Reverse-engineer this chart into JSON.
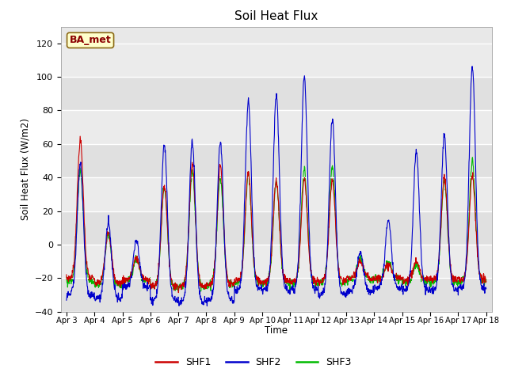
{
  "title": "Soil Heat Flux",
  "ylabel": "Soil Heat Flux (W/m2)",
  "xlabel": "Time",
  "ylim": [
    -40,
    130
  ],
  "yticks": [
    -40,
    -20,
    0,
    20,
    40,
    60,
    80,
    100,
    120
  ],
  "bg_color": "#e8e8e8",
  "fig_color": "#ffffff",
  "site_label": "BA_met",
  "legend_labels": [
    "SHF1",
    "SHF2",
    "SHF3"
  ],
  "legend_colors": [
    "#cc0000",
    "#0000cc",
    "#00bb00"
  ],
  "xtick_labels": [
    "Apr 3",
    "Apr 4",
    "Apr 5",
    "Apr 6",
    "Apr 7",
    "Apr 8",
    "Apr 9",
    "Apr 10",
    "Apr 11",
    "Apr 12",
    "Apr 13",
    "Apr 14",
    "Apr 15",
    "Apr 16",
    "Apr 17",
    "Apr 18"
  ],
  "shf1_peaks": [
    62,
    8,
    -8,
    35,
    48,
    47,
    43,
    38,
    39,
    38,
    -10,
    -12,
    -10,
    40,
    41
  ],
  "shf2_peaks": [
    48,
    13,
    2,
    60,
    61,
    61,
    85,
    89,
    100,
    75,
    -5,
    14,
    55,
    65,
    106
  ],
  "shf3_peaks": [
    44,
    6,
    -8,
    34,
    43,
    39,
    41,
    37,
    45,
    46,
    -8,
    -10,
    -12,
    38,
    50
  ],
  "shf1_nights": [
    -20,
    -23,
    -21,
    -25,
    -25,
    -24,
    -22,
    -22,
    -22,
    -22,
    -20,
    -20,
    -21,
    -21,
    -21
  ],
  "shf2_nights": [
    -30,
    -32,
    -25,
    -33,
    -34,
    -33,
    -27,
    -27,
    -27,
    -30,
    -28,
    -26,
    -27,
    -27,
    -26
  ],
  "shf3_nights": [
    -22,
    -24,
    -22,
    -25,
    -25,
    -24,
    -23,
    -23,
    -23,
    -23,
    -21,
    -21,
    -22,
    -22,
    -22
  ],
  "pts_per_day": 96,
  "n_days": 15
}
